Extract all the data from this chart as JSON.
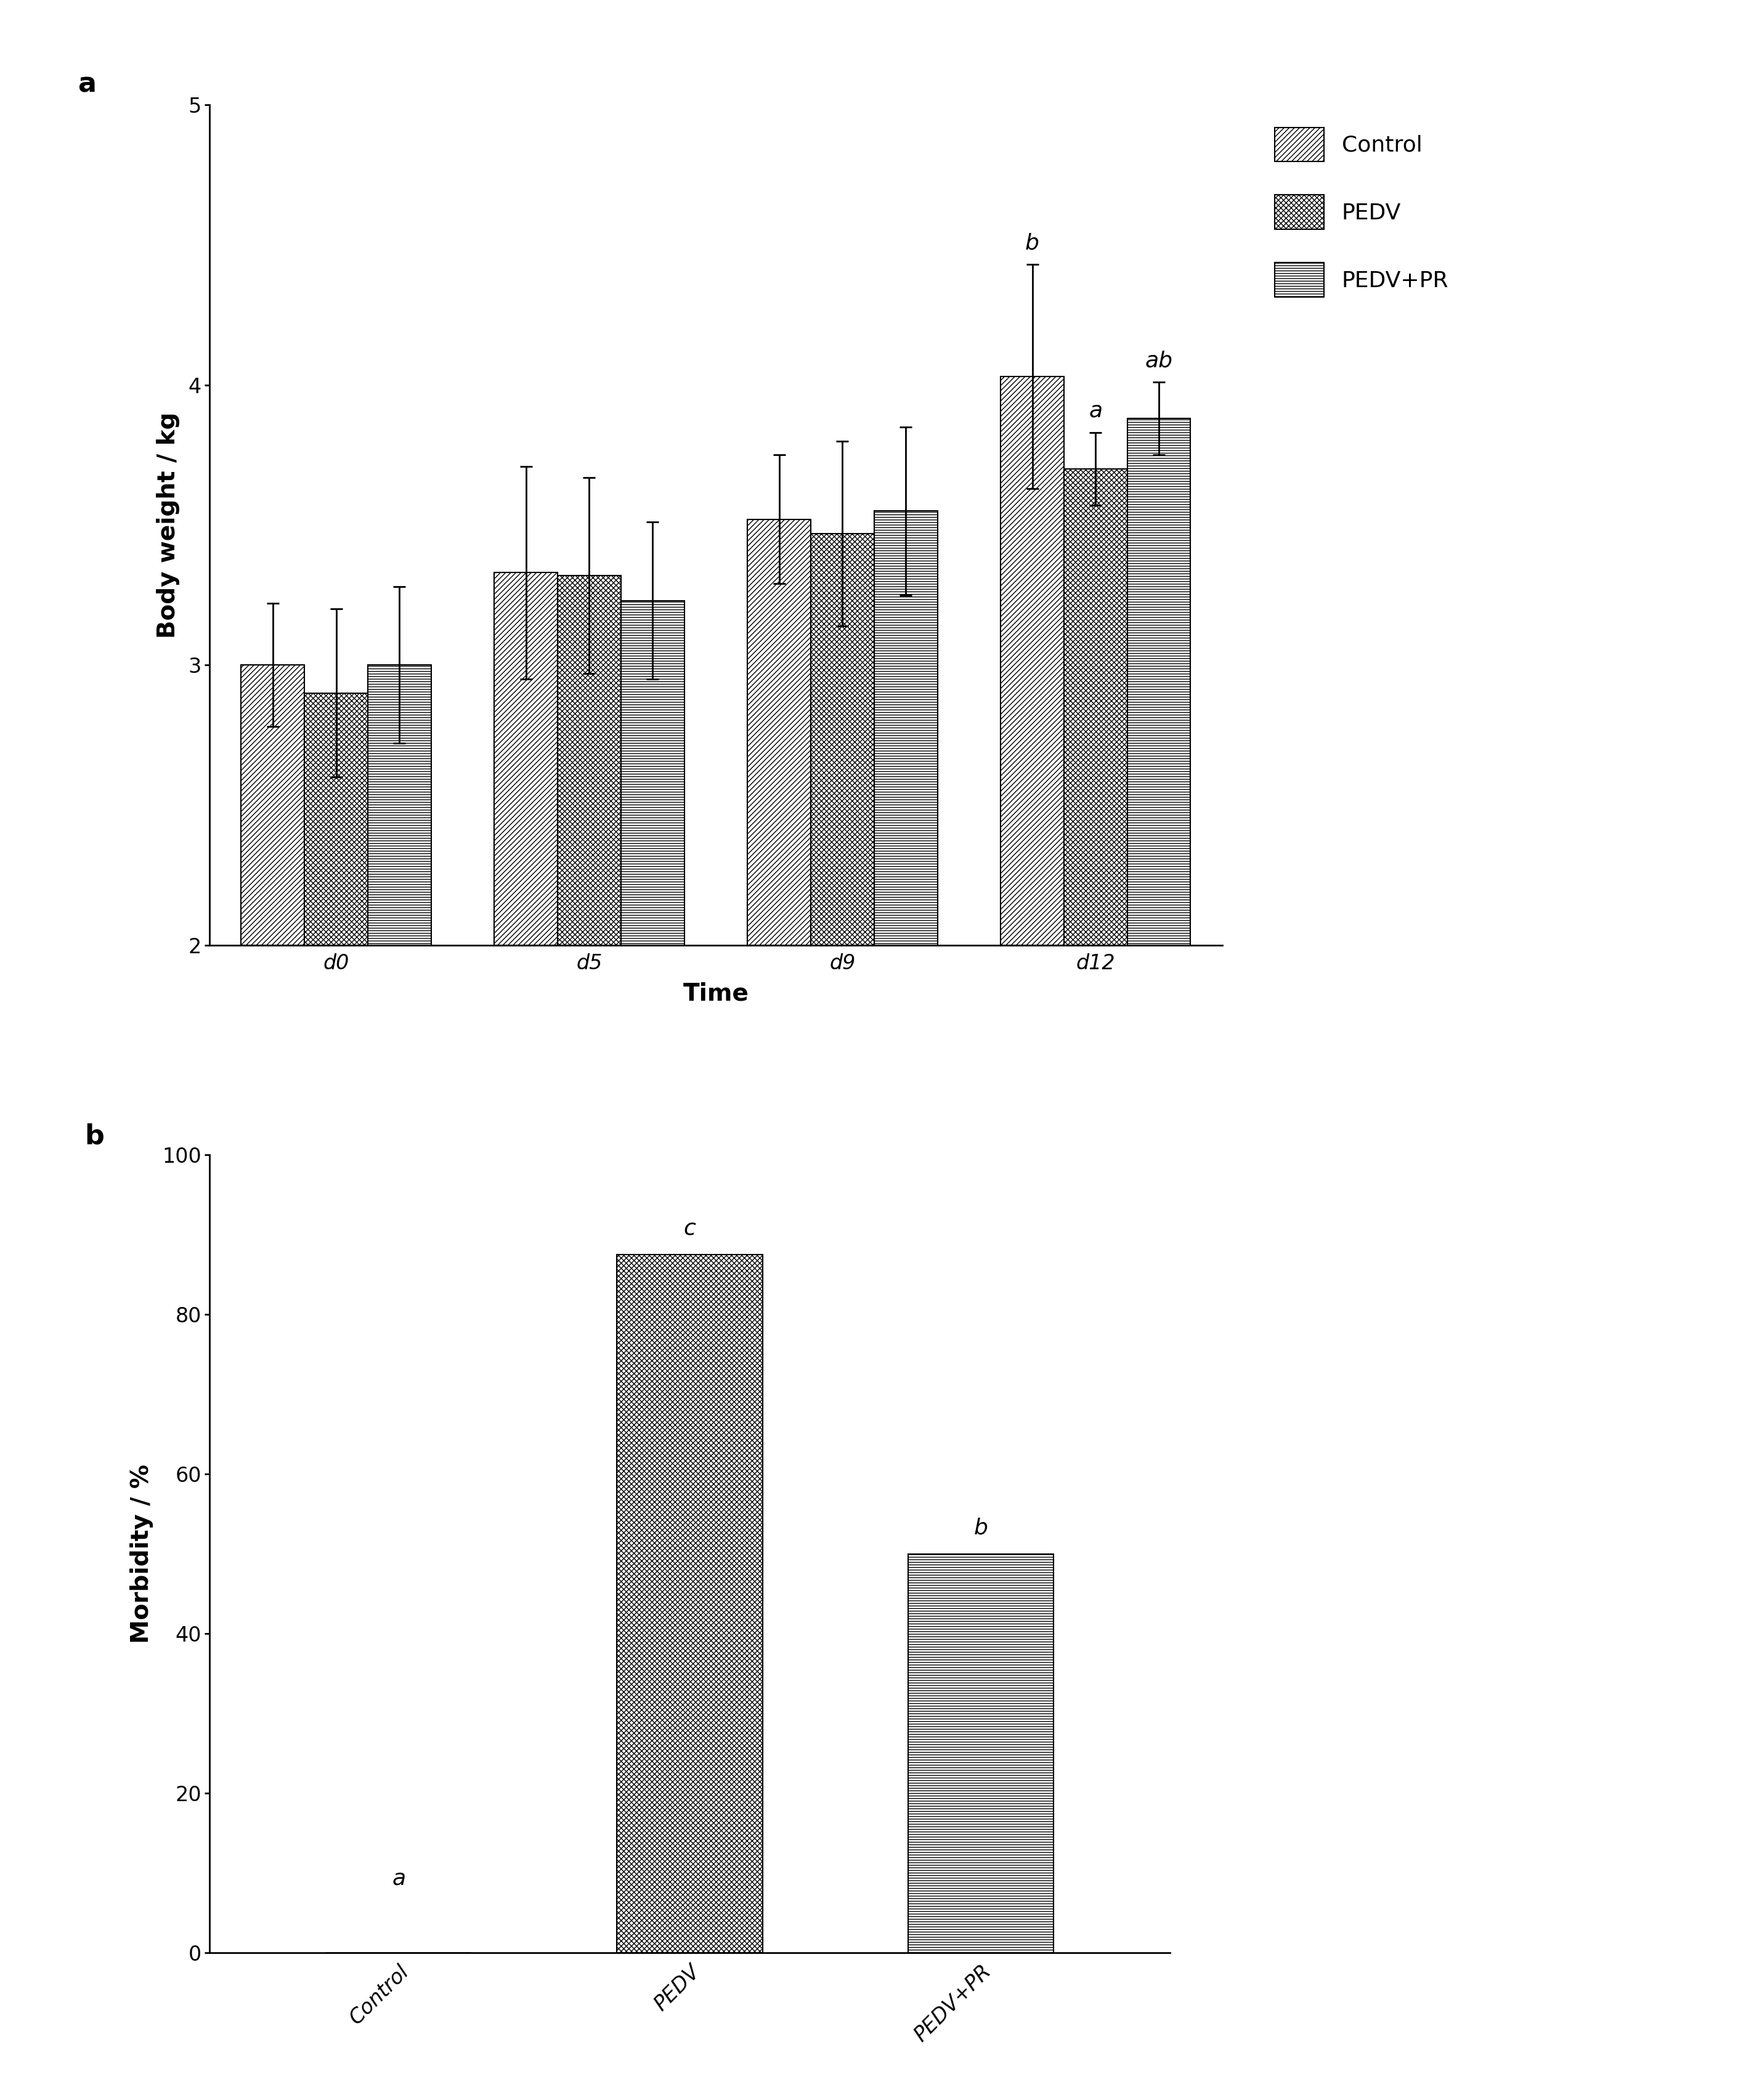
{
  "panel_a": {
    "groups": [
      "d0",
      "d5",
      "d9",
      "d12"
    ],
    "series": [
      "Control",
      "PEDV",
      "PEDV+PR"
    ],
    "values": [
      [
        3.0,
        2.9,
        3.0
      ],
      [
        3.33,
        3.32,
        3.23
      ],
      [
        3.52,
        3.47,
        3.55
      ],
      [
        4.03,
        3.7,
        3.88
      ]
    ],
    "errors": [
      [
        0.22,
        0.3,
        0.28
      ],
      [
        0.38,
        0.35,
        0.28
      ],
      [
        0.23,
        0.33,
        0.3
      ],
      [
        0.4,
        0.13,
        0.13
      ]
    ],
    "sig_labels": [
      [
        null,
        null,
        null
      ],
      [
        null,
        null,
        null
      ],
      [
        null,
        null,
        null
      ],
      [
        "b",
        "a",
        "ab"
      ]
    ],
    "ylabel": "Body weight / kg",
    "xlabel": "Time",
    "ylim": [
      2.0,
      5.0
    ],
    "yticks": [
      2.0,
      3.0,
      4.0,
      5.0
    ],
    "bar_width": 0.25,
    "panel_label": "a"
  },
  "panel_b": {
    "categories": [
      "Control",
      "PEDV",
      "PEDV+PR"
    ],
    "values": [
      0,
      87.5,
      50.0
    ],
    "sig_labels": [
      "a",
      "c",
      "b"
    ],
    "ylabel": "Morbidity / %",
    "ylim": [
      0,
      100
    ],
    "yticks": [
      0,
      20,
      40,
      60,
      80,
      100
    ],
    "bar_width": 0.5,
    "panel_label": "b"
  },
  "legend_labels": [
    "Control",
    "PEDV",
    "PEDV+PR"
  ],
  "figure_bg": "#ffffff",
  "fontsize_label": 28,
  "fontsize_tick": 24,
  "fontsize_legend": 26,
  "fontsize_sig": 26,
  "fontsize_panel": 32
}
